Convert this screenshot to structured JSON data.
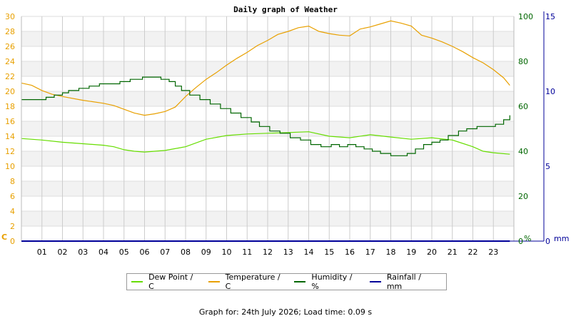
{
  "chart_data": {
    "type": "line",
    "title": "Daily graph of Weather",
    "x_ticks": [
      "01",
      "02",
      "03",
      "04",
      "05",
      "06",
      "07",
      "08",
      "09",
      "10",
      "11",
      "12",
      "13",
      "14",
      "15",
      "16",
      "17",
      "18",
      "19",
      "20",
      "21",
      "22",
      "23"
    ],
    "x_range": [
      0,
      24
    ],
    "axes": {
      "temperature": {
        "unit_label": "C",
        "range": [
          0,
          30
        ],
        "ticks": [
          0,
          2,
          4,
          6,
          8,
          10,
          12,
          14,
          16,
          18,
          20,
          22,
          24,
          26,
          28,
          30
        ],
        "color": "#e8a000"
      },
      "humidity": {
        "unit_label": "%",
        "range": [
          0,
          100
        ],
        "ticks": [
          0,
          20,
          40,
          60,
          80,
          100
        ],
        "color": "#006600"
      },
      "rainfall": {
        "unit_label": "mm",
        "range": [
          0,
          15
        ],
        "ticks": [
          0,
          5,
          10,
          15
        ],
        "color": "#000099"
      }
    },
    "series": [
      {
        "name": "Dew Point / C",
        "axis": "temperature",
        "color": "#66dd00",
        "x": [
          0,
          1,
          2,
          3,
          4,
          4.5,
          5,
          5.5,
          6,
          7,
          8,
          9,
          10,
          11,
          12,
          13,
          14,
          15,
          16,
          17,
          18,
          19,
          20,
          21,
          22,
          22.5,
          23,
          23.8
        ],
        "y": [
          13.7,
          13.5,
          13.2,
          13.0,
          12.8,
          12.6,
          12.2,
          12.0,
          11.9,
          12.1,
          12.6,
          13.6,
          14.1,
          14.3,
          14.4,
          14.5,
          14.6,
          14.0,
          13.8,
          14.2,
          13.9,
          13.6,
          13.8,
          13.5,
          12.6,
          12.0,
          11.8,
          11.6
        ]
      },
      {
        "name": "Temperature / C",
        "axis": "temperature",
        "color": "#e8a000",
        "x": [
          0,
          0.5,
          1,
          1.5,
          2,
          3,
          4,
          4.5,
          5,
          5.5,
          6,
          6.5,
          7,
          7.5,
          8,
          8.5,
          9,
          9.5,
          10,
          10.5,
          11,
          11.5,
          12,
          12.5,
          13,
          13.5,
          14,
          14.5,
          15,
          15.5,
          16,
          16.5,
          17,
          17.5,
          18,
          18.5,
          19,
          19.5,
          20,
          20.5,
          21,
          21.5,
          22,
          22.5,
          23,
          23.5,
          23.8
        ],
        "y": [
          21.1,
          20.8,
          20.1,
          19.6,
          19.3,
          18.8,
          18.4,
          18.1,
          17.6,
          17.1,
          16.8,
          17.0,
          17.3,
          17.9,
          19.3,
          20.5,
          21.6,
          22.5,
          23.5,
          24.4,
          25.2,
          26.1,
          26.8,
          27.6,
          28.0,
          28.5,
          28.7,
          28.0,
          27.7,
          27.5,
          27.4,
          28.3,
          28.6,
          29.0,
          29.4,
          29.1,
          28.7,
          27.5,
          27.1,
          26.6,
          26.0,
          25.3,
          24.5,
          23.8,
          22.9,
          21.8,
          20.8
        ]
      },
      {
        "name": "Humidity / %",
        "axis": "humidity",
        "color": "#006600",
        "step": true,
        "x": [
          0,
          0.8,
          1.2,
          1.6,
          2.0,
          2.3,
          2.8,
          3.3,
          3.8,
          4.3,
          4.8,
          5.3,
          5.9,
          6.4,
          6.8,
          7.2,
          7.5,
          7.8,
          8.2,
          8.7,
          9.2,
          9.7,
          10.2,
          10.7,
          11.2,
          11.6,
          12.1,
          12.6,
          13.1,
          13.6,
          14.1,
          14.6,
          15.1,
          15.5,
          15.9,
          16.3,
          16.7,
          17.1,
          17.5,
          18.0,
          18.4,
          18.8,
          19.2,
          19.6,
          20.0,
          20.4,
          20.8,
          21.3,
          21.7,
          22.2,
          22.7,
          23.1,
          23.5,
          23.8
        ],
        "y": [
          63,
          63,
          64,
          65,
          66,
          67,
          68,
          69,
          70,
          70,
          71,
          72,
          73,
          73,
          72,
          71,
          69,
          67,
          65,
          63,
          61,
          59,
          57,
          55,
          53,
          51,
          49,
          48,
          46,
          45,
          43,
          42,
          43,
          42,
          43,
          42,
          41,
          40,
          39,
          38,
          38,
          39,
          41,
          43,
          44,
          45,
          47,
          49,
          50,
          51,
          51,
          52,
          54,
          56
        ]
      },
      {
        "name": "Rainfall / mm",
        "axis": "rainfall",
        "color": "#000099",
        "x": [
          0,
          23.8
        ],
        "y": [
          0,
          0
        ]
      }
    ],
    "grid": true
  },
  "footer": {
    "text": "Graph for: 24th July 2026; Load time: 0.09 s"
  }
}
